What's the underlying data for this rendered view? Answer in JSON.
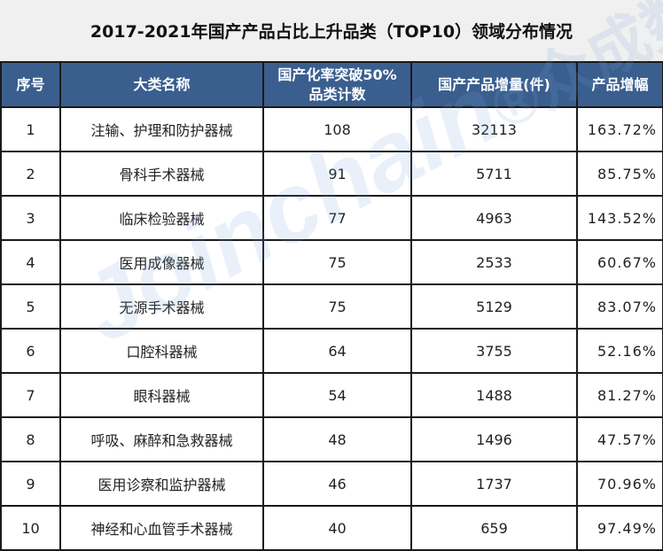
{
  "title": "2017-2021年国产产品占比上升品类（TOP10）领域分布情况",
  "headers": [
    "序号",
    "大类名称",
    "国产化率突破50%品类计数",
    "国产产品增量(件)",
    "产品增幅"
  ],
  "header_color": "#3a5f8f",
  "rows": [
    {
      "no": "1",
      "name": "注输、护理和防护器械",
      "count": "108",
      "increase": "32113",
      "growth": "163.72%"
    },
    {
      "no": "2",
      "name": "骨科手术器械",
      "count": "91",
      "increase": "5711",
      "growth": "85.75%"
    },
    {
      "no": "3",
      "name": "临床检验器械",
      "count": "77",
      "increase": "4963",
      "growth": "143.52%"
    },
    {
      "no": "4",
      "name": "医用成像器械",
      "count": "75",
      "increase": "2533",
      "growth": "60.67%"
    },
    {
      "no": "5",
      "name": "无源手术器械",
      "count": "75",
      "increase": "5129",
      "growth": "83.07%"
    },
    {
      "no": "6",
      "name": "口腔科器械",
      "count": "64",
      "increase": "3755",
      "growth": "52.16%"
    },
    {
      "no": "7",
      "name": "眼科器械",
      "count": "54",
      "increase": "1488",
      "growth": "81.27%"
    },
    {
      "no": "8",
      "name": "呼吸、麻醉和急救器械",
      "count": "48",
      "increase": "1496",
      "growth": "47.57%"
    },
    {
      "no": "9",
      "name": "医用诊察和监护器械",
      "count": "46",
      "increase": "1737",
      "growth": "70.96%"
    },
    {
      "no": "10",
      "name": "神经和心血管手术器械",
      "count": "40",
      "increase": "659",
      "growth": "97.49%"
    }
  ],
  "watermark": {
    "latin": "Joinchain",
    "cn": "众成数科"
  }
}
